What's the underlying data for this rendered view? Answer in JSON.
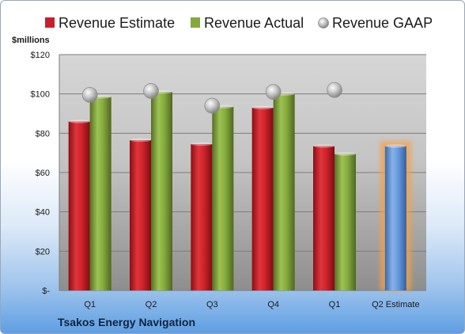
{
  "company_name": "Tsakos Energy Navigation",
  "chart_data": {
    "type": "bar",
    "title": "",
    "xlabel": "",
    "ylabel": "$millions",
    "ylim": [
      0,
      120
    ],
    "yticks": [
      {
        "value": 0,
        "label": "$-"
      },
      {
        "value": 20,
        "label": "$20"
      },
      {
        "value": 40,
        "label": "$40"
      },
      {
        "value": 60,
        "label": "$60"
      },
      {
        "value": 80,
        "label": "$80"
      },
      {
        "value": 100,
        "label": "$100"
      },
      {
        "value": 120,
        "label": "$120"
      }
    ],
    "grid": true,
    "legend_position": "top",
    "categories": [
      "Q1",
      "Q2",
      "Q3",
      "Q4",
      "Q1",
      "Q2 Estimate"
    ],
    "series": [
      {
        "name": "Revenue Estimate",
        "kind": "bar",
        "color": "#c8202a",
        "values": [
          86,
          76.5,
          74.5,
          93,
          73.5,
          null
        ]
      },
      {
        "name": "Revenue Actual",
        "kind": "bar",
        "color": "#84a83c",
        "values": [
          98.5,
          101,
          93.5,
          100,
          69.5,
          null
        ]
      },
      {
        "name": "Revenue GAAP",
        "kind": "marker",
        "color": "#b4b4b4",
        "values": [
          99.5,
          101.5,
          94,
          101,
          102,
          null
        ]
      },
      {
        "name": "",
        "kind": "highlight-bar",
        "color": "#5b8fd6",
        "glow": "#f5a046",
        "values": [
          null,
          null,
          null,
          null,
          null,
          73.5
        ]
      }
    ]
  }
}
